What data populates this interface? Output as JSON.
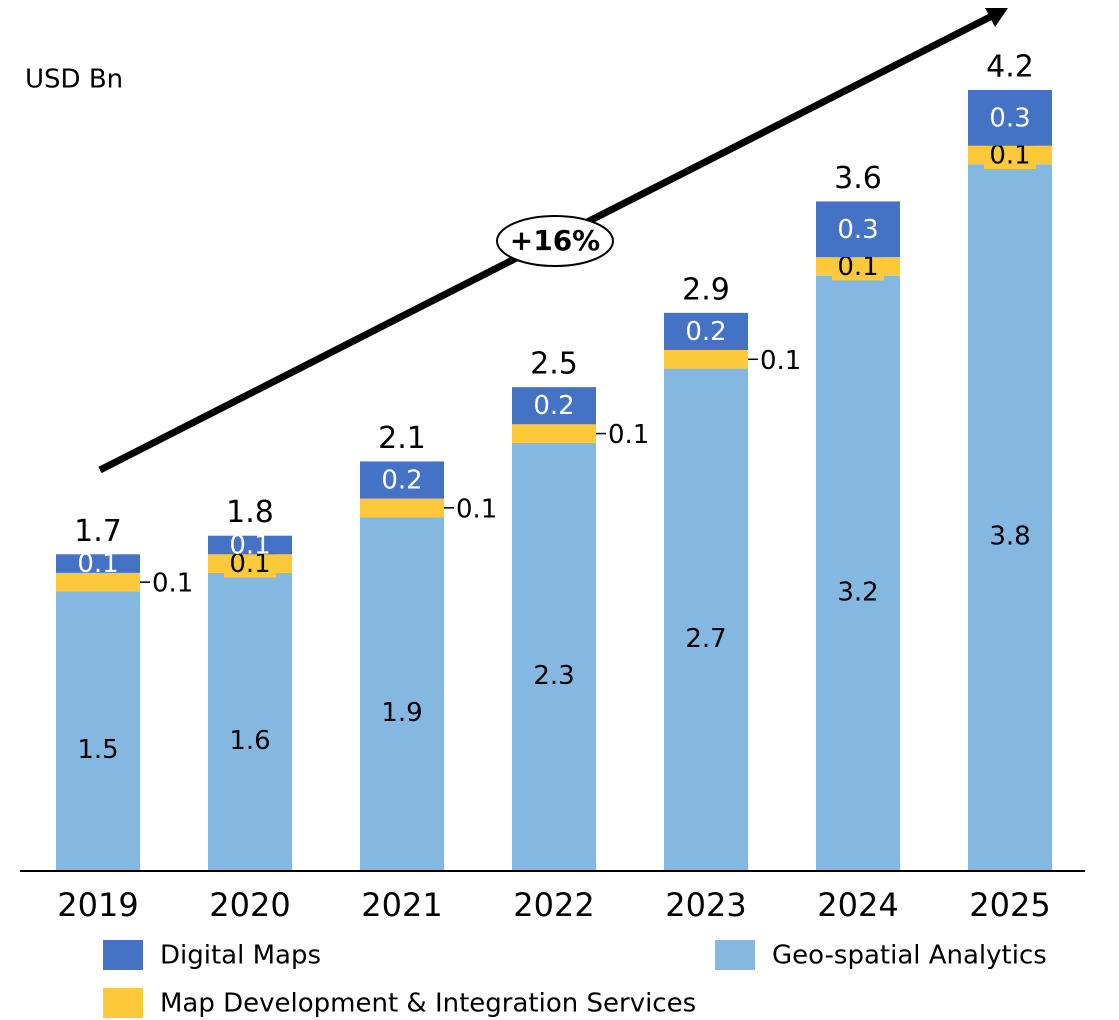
{
  "chart_data": {
    "type": "stacked_bar",
    "y_label": "USD Bn",
    "annotation": "+16%",
    "categories": [
      "2019",
      "2020",
      "2021",
      "2022",
      "2023",
      "2024",
      "2025"
    ],
    "series": [
      {
        "name": "Geo-spatial Analytics",
        "color": "#85b8e0",
        "values": [
          1.5,
          1.6,
          1.9,
          2.3,
          2.7,
          3.2,
          3.8
        ]
      },
      {
        "name": "Map Development & Integration Services",
        "color": "#fcc93a",
        "values": [
          0.1,
          0.1,
          0.1,
          0.1,
          0.1,
          0.1,
          0.1
        ]
      },
      {
        "name": "Digital Maps",
        "color": "#4472c4",
        "values": [
          0.1,
          0.1,
          0.2,
          0.2,
          0.2,
          0.3,
          0.3
        ]
      }
    ],
    "totals": [
      1.7,
      1.8,
      2.1,
      2.5,
      2.9,
      3.6,
      4.2
    ]
  }
}
